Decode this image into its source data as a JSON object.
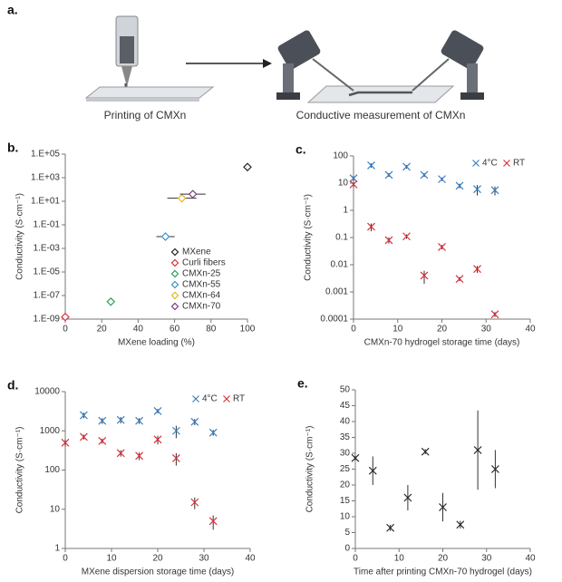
{
  "illustration": {
    "label": "a.",
    "captions": [
      "Printing of CMXn",
      "Conductive measurement of CMXn"
    ]
  },
  "chart_data": [
    {
      "type": "scatter",
      "label": "b.",
      "x_label": "MXene loading (%)",
      "y_label": "Conductivity (S·cm⁻¹)",
      "xlim": [
        0,
        100
      ],
      "xticks": [
        0,
        20,
        40,
        60,
        80,
        100
      ],
      "log_y": true,
      "ylim": [
        1e-09,
        100000
      ],
      "yticks": [
        {
          "value": 1e-09,
          "label": "1.E-09"
        },
        {
          "value": 1e-07,
          "label": "1.E-07"
        },
        {
          "value": 1e-05,
          "label": "1.E-05"
        },
        {
          "value": 0.001,
          "label": "1.E-03"
        },
        {
          "value": 0.1,
          "label": "1.E-01"
        },
        {
          "value": 10,
          "label": "1.E+01"
        },
        {
          "value": 1000,
          "label": "1.E+03"
        },
        {
          "value": 100000,
          "label": "1.E+05"
        }
      ],
      "legend": "lower right",
      "marker": "diamond",
      "series": [
        {
          "name": "MXene",
          "color": "#222222",
          "x": [
            100
          ],
          "values": [
            8000
          ]
        },
        {
          "name": "Curli fibers",
          "color": "#d9313a",
          "x": [
            0
          ],
          "values": [
            1.5e-09
          ]
        },
        {
          "name": "CMXn-25",
          "color": "#2e9e5a",
          "x": [
            25
          ],
          "values": [
            3e-08
          ],
          "xerrors": [
            2
          ]
        },
        {
          "name": "CMXn-55",
          "color": "#3a8fc8",
          "x": [
            55
          ],
          "values": [
            0.01
          ],
          "xerrors": [
            5
          ]
        },
        {
          "name": "CMXn-64",
          "color": "#e2b820",
          "x": [
            64
          ],
          "values": [
            18
          ],
          "xerrors": [
            8
          ]
        },
        {
          "name": "CMXn-70",
          "color": "#7a3f7a",
          "x": [
            70
          ],
          "values": [
            40
          ],
          "xerrors": [
            7
          ]
        }
      ]
    },
    {
      "type": "scatter",
      "label": "c.",
      "x_label": "CMXn-70 hydrogel storage time (days)",
      "y_label": "Conductivity (S·cm⁻¹)",
      "xlim": [
        0,
        40
      ],
      "xticks": [
        0,
        10,
        20,
        30,
        40
      ],
      "log_y": true,
      "ylim": [
        0.0001,
        100
      ],
      "yticks": [
        0.0001,
        0.001,
        0.01,
        0.1,
        1,
        10,
        100
      ],
      "legend": "upper right",
      "marker": "cross",
      "series": [
        {
          "name": "4°C",
          "color": "#3a7fc1",
          "x": [
            0,
            4,
            8,
            12,
            16,
            20,
            24,
            28,
            32
          ],
          "values": [
            15,
            45,
            20,
            40,
            20,
            14,
            8,
            6,
            5.5
          ],
          "errors": [
            3,
            8,
            3,
            6,
            3,
            2,
            1.5,
            2.5,
            2
          ]
        },
        {
          "name": "RT",
          "color": "#d9313a",
          "x": [
            0,
            4,
            8,
            12,
            16,
            20,
            24,
            28,
            32
          ],
          "values": [
            9,
            0.25,
            0.08,
            0.11,
            0.004,
            0.045,
            0.003,
            0.007,
            0.00015
          ],
          "errors": [
            2,
            0.08,
            0.02,
            0.02,
            0.002,
            0.008,
            0.0005,
            0.002,
            3e-05
          ]
        }
      ]
    },
    {
      "type": "scatter",
      "label": "d.",
      "x_label": "MXene dispersion storage time (days)",
      "y_label": "Conductivity (S·cm⁻¹)",
      "xlim": [
        0,
        40
      ],
      "xticks": [
        0,
        10,
        20,
        30,
        40
      ],
      "log_y": true,
      "ylim": [
        1,
        10000
      ],
      "yticks": [
        1,
        10,
        100,
        1000,
        10000
      ],
      "legend": "upper right",
      "marker": "cross",
      "series": [
        {
          "name": "4°C",
          "color": "#3a7fc1",
          "x": [
            4,
            8,
            12,
            16,
            20,
            24,
            28,
            32
          ],
          "values": [
            2500,
            1800,
            1900,
            1800,
            3200,
            1000,
            1700,
            900
          ],
          "errors": [
            400,
            300,
            350,
            300,
            400,
            350,
            300,
            150
          ]
        },
        {
          "name": "RT",
          "color": "#d9313a",
          "x": [
            0,
            4,
            8,
            12,
            16,
            20,
            24,
            28,
            32
          ],
          "values": [
            500,
            700,
            550,
            270,
            230,
            600,
            200,
            15,
            5
          ],
          "errors": [
            100,
            100,
            80,
            50,
            50,
            150,
            70,
            5,
            2
          ]
        }
      ]
    },
    {
      "type": "scatter",
      "label": "e.",
      "x_label": "Time after printing CMXn-70 hydrogel (days)",
      "y_label": "Conductivity (S·cm⁻¹)",
      "xlim": [
        0,
        40
      ],
      "xticks": [
        0,
        10,
        20,
        30,
        40
      ],
      "log_y": false,
      "ylim": [
        0,
        50
      ],
      "yticks": [
        0,
        5,
        10,
        15,
        20,
        25,
        30,
        35,
        40,
        45,
        50
      ],
      "marker": "cross",
      "series": [
        {
          "color": "#222222",
          "x": [
            0,
            4,
            8,
            12,
            16,
            20,
            24,
            28,
            32
          ],
          "values": [
            28.5,
            24.5,
            6.5,
            16,
            30.5,
            13,
            7.5,
            31,
            25
          ],
          "errors": [
            0.8,
            4.5,
            1,
            4,
            0.8,
            4.5,
            1.2,
            12.5,
            6
          ]
        }
      ]
    }
  ]
}
